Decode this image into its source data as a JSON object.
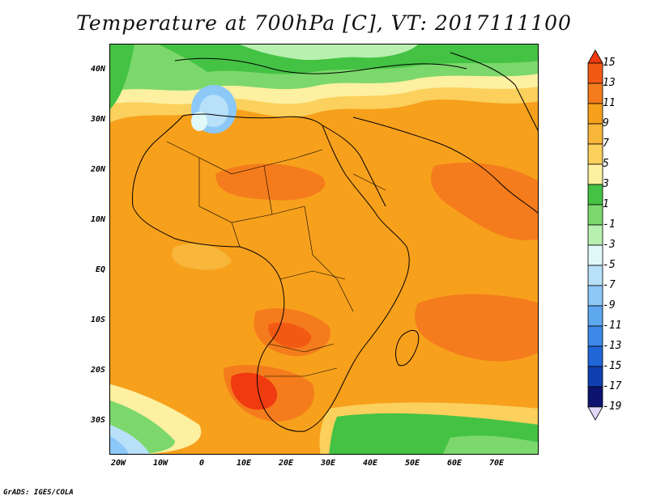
{
  "title": "Temperature at 700hPa [C], VT: 2017111100",
  "credit": "GrADS: IGES/COLA",
  "lat_labels": [
    "40N",
    "30N",
    "20N",
    "10N",
    "EQ",
    "10S",
    "20S",
    "30S"
  ],
  "lon_labels": [
    "20W",
    "10W",
    "0",
    "10E",
    "20E",
    "30E",
    "40E",
    "50E",
    "60E",
    "70E"
  ],
  "colorbar": {
    "labels": [
      "15",
      "13",
      "11",
      "9",
      "7",
      "5",
      "3",
      "1",
      "-1",
      "-3",
      "-5",
      "-7",
      "-9",
      "-11",
      "-13",
      "-15",
      "-17",
      "-19"
    ],
    "colors": [
      "#f03a10",
      "#f25a14",
      "#f47c1c",
      "#f7a01c",
      "#f8b63a",
      "#fbd05c",
      "#fdf0a0",
      "#44c244",
      "#7cd86c",
      "#b8f0b0",
      "#e0f8f8",
      "#b8e0f8",
      "#8cc8f8",
      "#5ea8f0",
      "#3c88e8",
      "#2066d8",
      "#1040b0",
      "#0c1470",
      "#e0d8f8"
    ]
  },
  "legend_icons": {
    "top": "triangle-up-icon",
    "bottom": "triangle-down-icon"
  }
}
